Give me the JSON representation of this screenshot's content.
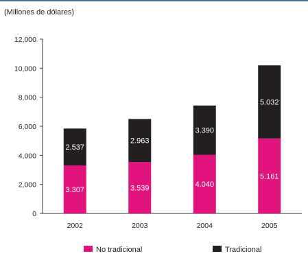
{
  "chart_data": {
    "type": "bar",
    "stacked": true,
    "ylabel": "(Millones de dólares)",
    "categories": [
      "2002",
      "2003",
      "2004",
      "2005"
    ],
    "series": [
      {
        "name": "No tradicional",
        "color": "#e0147c",
        "values": [
          3307,
          3539,
          4040,
          5161
        ],
        "labels": [
          "3.307",
          "3.539",
          "4.040",
          "5.161"
        ]
      },
      {
        "name": "Tradicional",
        "color": "#231f20",
        "values": [
          2537,
          2963,
          3390,
          5032
        ],
        "labels": [
          "2.537",
          "2.963",
          "3.390",
          "5.032"
        ]
      }
    ],
    "ylim": [
      0,
      12000
    ],
    "yticks": [
      0,
      2000,
      4000,
      6000,
      8000,
      10000,
      12000
    ],
    "ytick_labels": [
      "0",
      "2,000",
      "4,000",
      "6,000",
      "8,000",
      "10,000",
      "12,000"
    ],
    "grid": false,
    "legend_position": "bottom"
  }
}
